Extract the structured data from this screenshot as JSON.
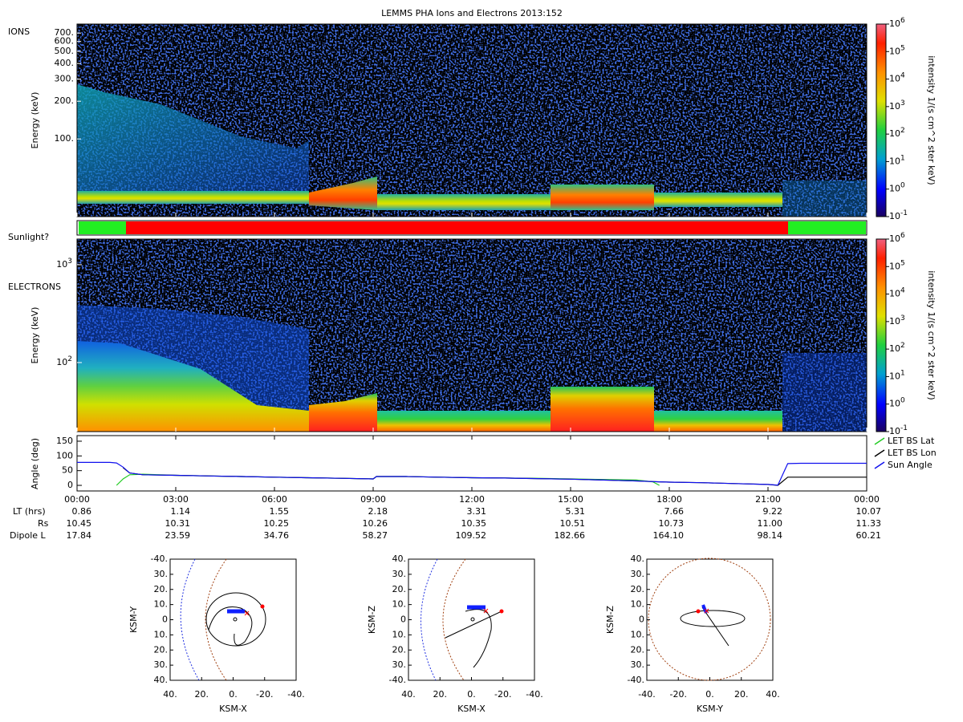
{
  "title": "LEMMS PHA Ions and Electrons  2013:152",
  "ions": {
    "label": "IONS",
    "ylabel": "Energy (keV)",
    "log": true,
    "ylim": [
      24,
      826
    ],
    "yticks": [
      {
        "value": 100,
        "label": "100."
      },
      {
        "value": 200,
        "label": "200."
      },
      {
        "value": 300,
        "label": "300."
      },
      {
        "value": 400,
        "label": "400."
      },
      {
        "value": 500,
        "label": "500."
      },
      {
        "value": 600,
        "label": "600."
      },
      {
        "value": 700,
        "label": "700."
      }
    ]
  },
  "sunlight": {
    "label": "Sunlight?"
  },
  "electrons": {
    "label": "ELECTRONS",
    "ylabel": "Energy (keV)",
    "log": true,
    "ylim": [
      19.7,
      1828
    ],
    "yticks": [
      {
        "value": 100,
        "label": "10",
        "exp": "2"
      },
      {
        "value": 1000,
        "label": "10",
        "exp": "3"
      }
    ]
  },
  "colorbar": {
    "label": "intensity 1/(s cm^2 ster keV)",
    "log": true,
    "ylim": [
      0.1,
      1000000
    ],
    "ticks": [
      {
        "value": 0.1,
        "label": "10",
        "exp": "-1"
      },
      {
        "value": 1,
        "label": "10",
        "exp": "0"
      },
      {
        "value": 10,
        "label": "10",
        "exp": "1"
      },
      {
        "value": 100,
        "label": "10",
        "exp": "2"
      },
      {
        "value": 1000,
        "label": "10",
        "exp": "3"
      },
      {
        "value": 10000,
        "label": "10",
        "exp": "4"
      },
      {
        "value": 100000,
        "label": "10",
        "exp": "5"
      },
      {
        "value": 1000000,
        "label": "10",
        "exp": "6"
      }
    ]
  },
  "chart_data": {
    "type": "line",
    "ylabel": "Angle (deg)",
    "xlim": [
      0,
      24
    ],
    "ylim": [
      -19,
      169
    ],
    "yticks": [
      0,
      50,
      100,
      150
    ],
    "xticks": [
      {
        "value": 0,
        "label": "00:00"
      },
      {
        "value": 3,
        "label": "03:00"
      },
      {
        "value": 6,
        "label": "06:00"
      },
      {
        "value": 9,
        "label": "09:00"
      },
      {
        "value": 12,
        "label": "12:00"
      },
      {
        "value": 15,
        "label": "15:00"
      },
      {
        "value": 18,
        "label": "18:00"
      },
      {
        "value": 21,
        "label": "21:00"
      },
      {
        "value": 24,
        "label": "00:00"
      }
    ],
    "legend": "right",
    "x": [
      0,
      0.5,
      1,
      1.2,
      1.4,
      1.6,
      2,
      3,
      4,
      5,
      6,
      7,
      8,
      9,
      9.1,
      10,
      11,
      12,
      13,
      14,
      15,
      16,
      17,
      17.5,
      17.7,
      18,
      19,
      20,
      21,
      21.3,
      21.6,
      22,
      23,
      24
    ],
    "series": [
      {
        "name": "LET BS Lat",
        "color": "#22cc22",
        "values": [
          null,
          null,
          null,
          0,
          22,
          36,
          38,
          34,
          32,
          30,
          28,
          26,
          24,
          22,
          30,
          30,
          28,
          26,
          25,
          24,
          22,
          20,
          18,
          12,
          0,
          null,
          null,
          null,
          null,
          null,
          null,
          null,
          null,
          null
        ]
      },
      {
        "name": "LET BS Lon",
        "color": "#000000",
        "values": [
          null,
          null,
          null,
          null,
          60,
          42,
          36,
          34,
          32,
          30,
          28,
          26,
          24,
          22,
          30,
          30,
          28,
          26,
          25,
          23,
          21,
          18,
          15,
          13,
          12,
          11,
          9,
          6,
          3,
          0,
          28,
          28,
          28,
          28
        ]
      },
      {
        "name": "Sun Angle",
        "color": "#1010ee",
        "values": [
          78,
          78,
          78,
          76,
          62,
          42,
          36,
          34,
          32,
          30,
          28,
          26,
          24,
          22,
          30,
          30,
          28,
          26,
          25,
          23,
          21,
          18,
          15,
          13,
          12,
          11,
          9,
          6,
          3,
          1,
          74,
          75,
          75,
          75
        ]
      }
    ]
  },
  "ephemeris": {
    "rows": [
      {
        "label": "LT (hrs)",
        "values": [
          "0.86",
          "1.14",
          "1.55",
          "2.18",
          "3.31",
          "5.31",
          "7.66",
          "9.22",
          "10.07"
        ]
      },
      {
        "label": "Rs",
        "values": [
          "10.45",
          "10.31",
          "10.25",
          "10.26",
          "10.35",
          "10.51",
          "10.73",
          "11.00",
          "11.33"
        ]
      },
      {
        "label": "Dipole L",
        "values": [
          "17.84",
          "23.59",
          "34.76",
          "58.27",
          "109.52",
          "182.66",
          "164.10",
          "98.14",
          "60.21"
        ]
      }
    ]
  },
  "orbits": [
    {
      "xlabel": "KSM-X",
      "ylabel": "KSM-Y",
      "xticks": [
        "40.",
        "20.",
        "0.",
        "-20.",
        "-40."
      ],
      "yticks": [
        "-40.",
        "30.",
        "20.",
        "10.",
        "0",
        "10.",
        "20.",
        "30.",
        "40."
      ]
    },
    {
      "xlabel": "KSM-X",
      "ylabel": "KSM-Z",
      "xticks": [
        "40.",
        "20.",
        "0.",
        "-20.",
        "-40."
      ],
      "yticks": [
        "40.",
        "30.",
        "20.",
        "10.",
        "0",
        "10.",
        "20.",
        "30.",
        "-40."
      ]
    },
    {
      "xlabel": "KSM-Y",
      "ylabel": "KSM-Z",
      "xticks": [
        "-40.",
        "-20.",
        "0.",
        "20.",
        "40."
      ],
      "yticks": [
        "40.",
        "30.",
        "20.",
        "10.",
        "0",
        "10.",
        "20.",
        "30.",
        "-40."
      ]
    }
  ]
}
